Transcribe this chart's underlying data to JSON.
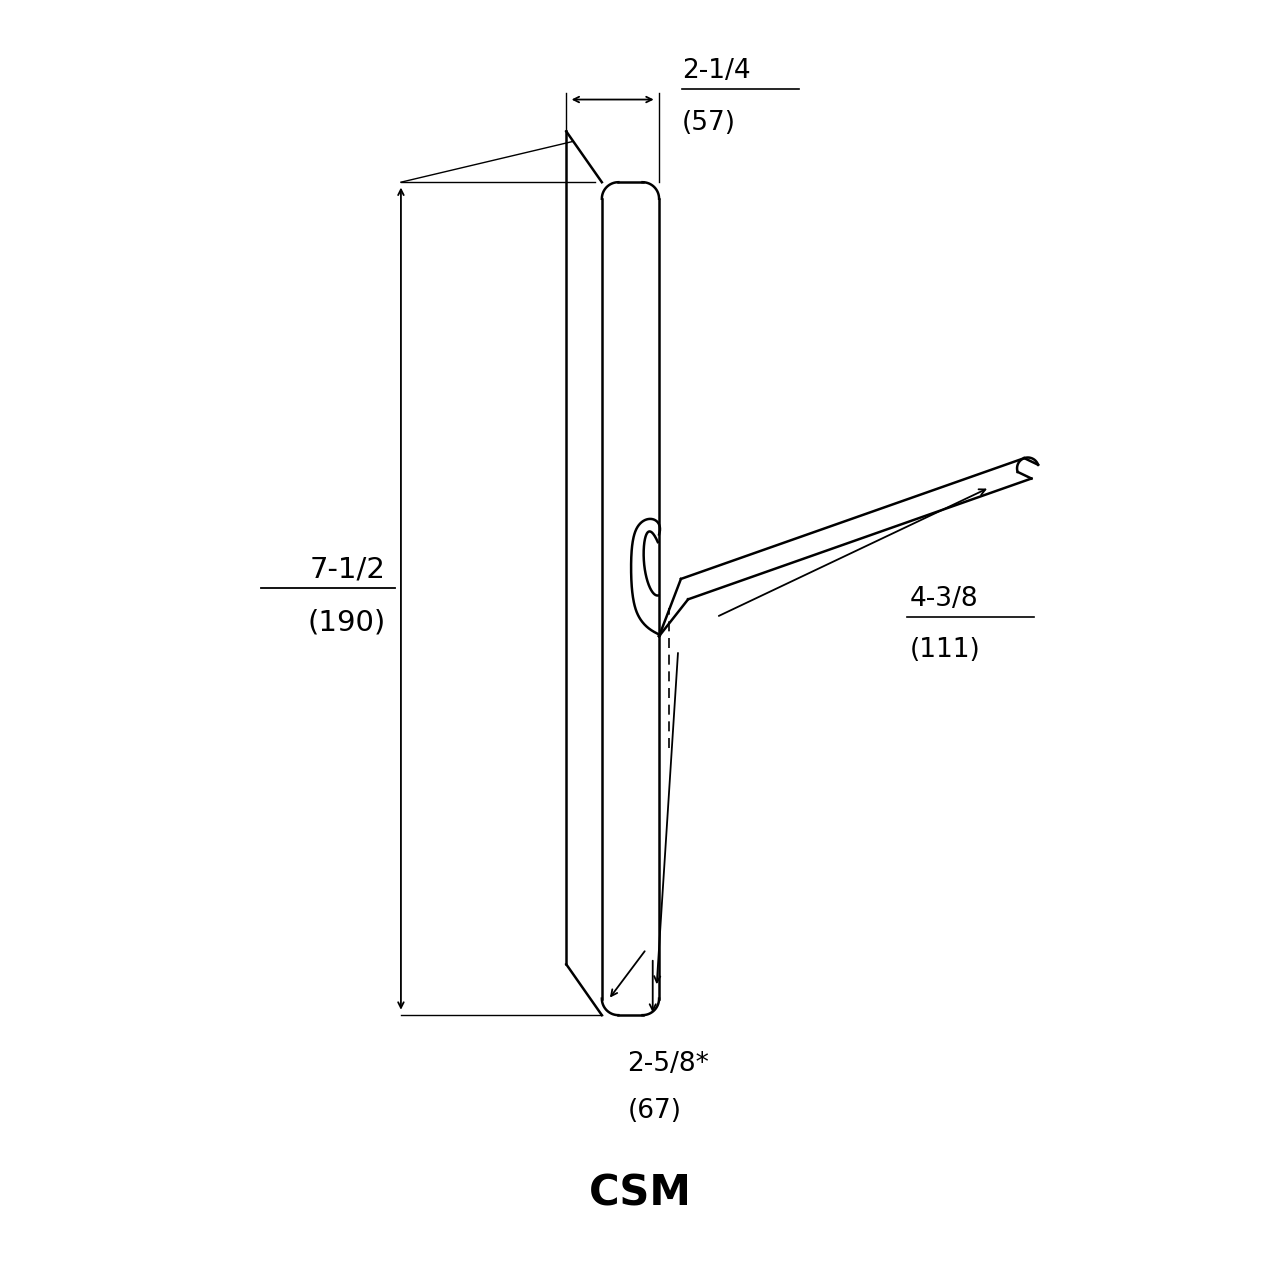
{
  "background_color": "#ffffff",
  "line_color": "#000000",
  "title": "CSM",
  "title_fontsize": 30,
  "dim_fontsize": 19,
  "dim_color": "#000000",
  "fig_width": 12.8,
  "fig_height": 12.8,
  "annotations": {
    "top_width_label_line1": "2-1/4",
    "top_width_label_line2": "(57)",
    "height_label_line1": "7-1/2",
    "height_label_line2": "(190)",
    "depth_label_line1": "4-3/8",
    "depth_label_line2": "(111)",
    "bottom_label_line1": "2-5/8*",
    "bottom_label_line2": "(67)"
  }
}
